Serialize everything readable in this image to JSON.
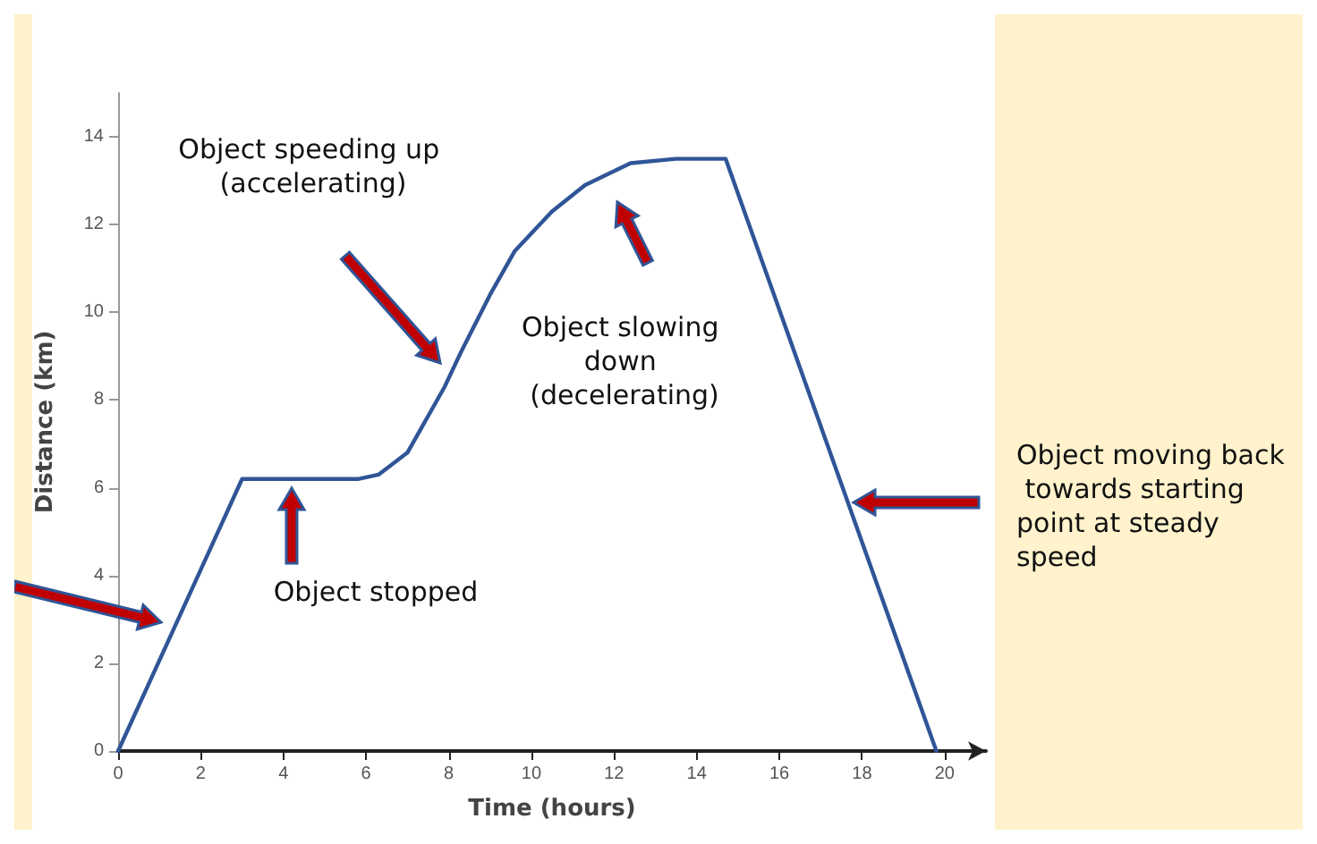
{
  "chart_data": {
    "type": "line",
    "xlabel": "Time (hours)",
    "ylabel": "Distance (km)",
    "x": [
      0,
      3.0,
      5.8,
      6.3,
      7.0,
      7.9,
      8.3,
      9.0,
      9.6,
      10.5,
      11.3,
      12.4,
      13.5,
      14.7,
      19.8
    ],
    "series": [
      {
        "color": "#2f5597",
        "values": [
          0,
          6.2,
          6.2,
          6.3,
          6.8,
          8.3,
          9.1,
          10.4,
          11.4,
          12.3,
          12.9,
          13.4,
          13.5,
          13.5,
          0
        ]
      }
    ],
    "xlim": [
      0,
      21
    ],
    "ylim": [
      0,
      15
    ],
    "xticks": [
      0,
      2,
      4,
      6,
      8,
      10,
      12,
      14,
      16,
      18,
      20
    ],
    "yticks": [
      0,
      2,
      4,
      6,
      8,
      10,
      12,
      14
    ],
    "grid": false,
    "marker": "none",
    "line_style": "solid",
    "annotations": [
      "Object speeding up (accelerating)",
      "Object slowing down (decelerating)",
      "Object stopped",
      "Object moving back towards starting point at steady speed"
    ]
  }
}
